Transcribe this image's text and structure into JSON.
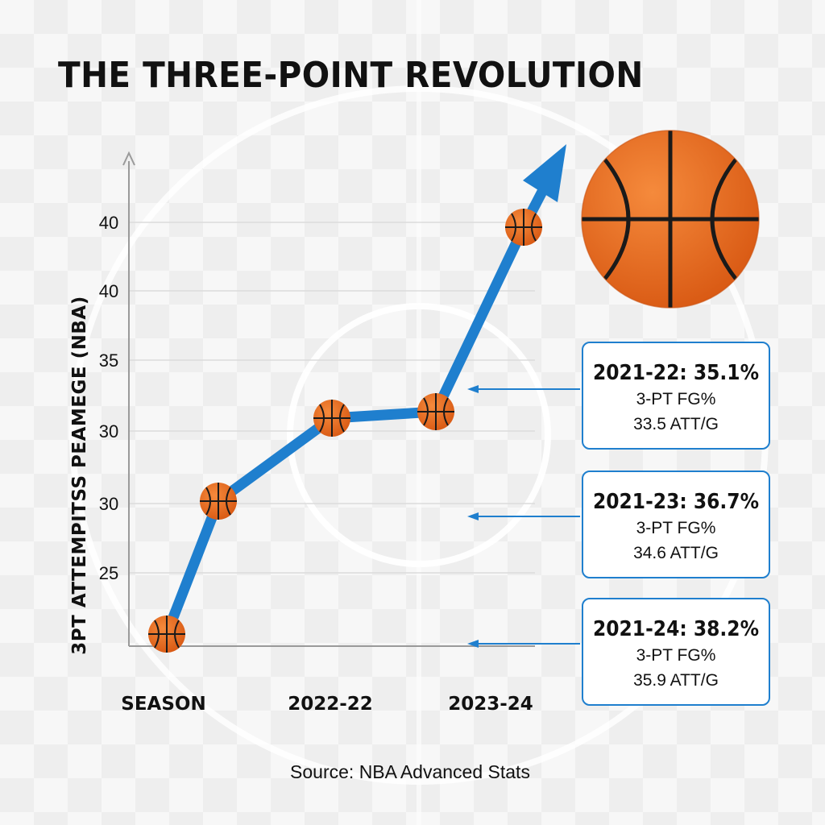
{
  "title": "THE THREE-POINT REVOLUTION",
  "source": "Source: NBA Advanced Stats",
  "colors": {
    "line": "#1f7fce",
    "ball": "#e8681c",
    "ball_seams": "#1a1a1a",
    "callout_border": "#1f7fce",
    "grid": "#dcdcdc"
  },
  "icons": {
    "big_ball": "basketball-icon",
    "marker": "basketball-icon",
    "trend_arrow": "arrow-up-icon"
  },
  "chart_data": {
    "type": "line",
    "title": "THE THREE-POINT REVOLUTION",
    "ylabel": "3PT ATTEMPITSS PEAMEGE (NBA)",
    "xlabel": "SEASON",
    "x_tick_labels": [
      "SEASON",
      "2022-22",
      "2023-24"
    ],
    "y_tick_labels": [
      "25",
      "30",
      "30",
      "35",
      "40",
      "40"
    ],
    "ylim": [
      20,
      46
    ],
    "grid": true,
    "series": [
      {
        "values": [
          20.8,
          29.9,
          31.9,
          32.0,
          42.5
        ]
      }
    ],
    "callouts": [
      {
        "heading": "2021-22: 35.1%",
        "line1": "3-PT FG%",
        "line2": "33.5 ATT/G"
      },
      {
        "heading": "2021-23: 36.7%",
        "line1": "3-PT FG%",
        "line2": "34.6 ATT/G"
      },
      {
        "heading": "2021-24: 38.2%",
        "line1": "3-PT FG%",
        "line2": "35.9 ATT/G"
      }
    ]
  }
}
